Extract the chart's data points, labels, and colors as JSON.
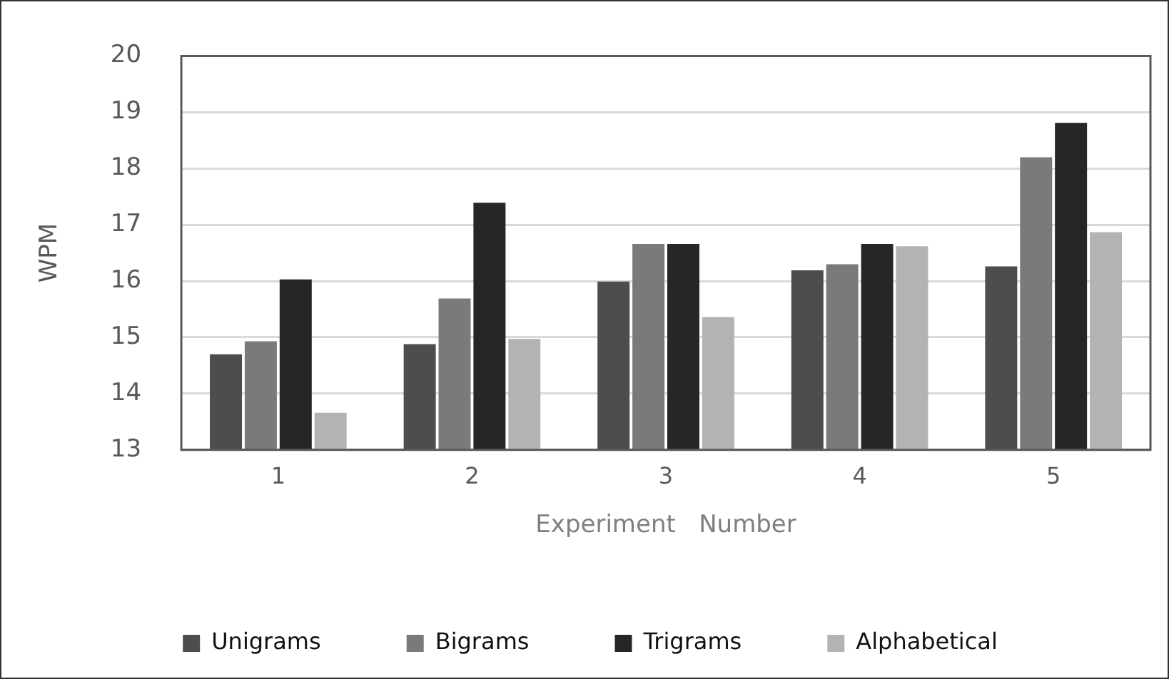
{
  "chart_data": {
    "type": "bar",
    "xlabel": "Experiment   Number",
    "ylabel": "WPM",
    "categories": [
      "1",
      "2",
      "3",
      "4",
      "5"
    ],
    "series": [
      {
        "name": "Unigrams",
        "color": "#4d4d4d",
        "values": [
          14.7,
          14.88,
          15.99,
          16.19,
          16.26
        ]
      },
      {
        "name": "Bigrams",
        "color": "#7a7a7a",
        "values": [
          14.93,
          15.69,
          16.66,
          16.3,
          18.2
        ]
      },
      {
        "name": "Trigrams",
        "color": "#262626",
        "values": [
          16.03,
          17.39,
          16.66,
          16.66,
          18.81
        ]
      },
      {
        "name": "Alphabetical",
        "color": "#b3b3b3",
        "values": [
          13.66,
          14.97,
          15.36,
          16.62,
          16.87
        ]
      }
    ],
    "ylim": [
      13,
      20
    ],
    "yticks": [
      13,
      14,
      15,
      16,
      17,
      18,
      19,
      20
    ],
    "grid": "y",
    "legend": "bottom"
  }
}
